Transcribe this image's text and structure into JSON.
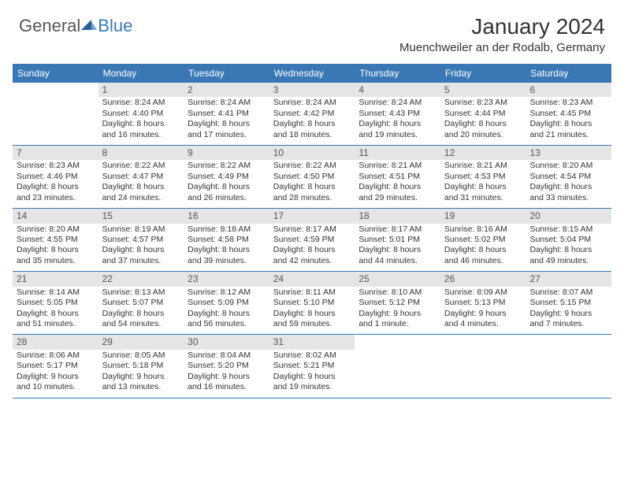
{
  "logo": {
    "part1": "General",
    "part2": "Blue"
  },
  "title": "January 2024",
  "location": "Muenchweiler an der Rodalb, Germany",
  "weekdays": [
    "Sunday",
    "Monday",
    "Tuesday",
    "Wednesday",
    "Thursday",
    "Friday",
    "Saturday"
  ],
  "colors": {
    "header_bar": "#3a78b5",
    "shade": "#e5e5e5",
    "text": "#333333",
    "logo_blue": "#3a78b5"
  },
  "weeks": [
    [
      {
        "day": "",
        "lines": []
      },
      {
        "day": "1",
        "shade": true,
        "lines": [
          "Sunrise: 8:24 AM",
          "Sunset: 4:40 PM",
          "Daylight: 8 hours",
          "and 16 minutes."
        ]
      },
      {
        "day": "2",
        "shade": true,
        "lines": [
          "Sunrise: 8:24 AM",
          "Sunset: 4:41 PM",
          "Daylight: 8 hours",
          "and 17 minutes."
        ]
      },
      {
        "day": "3",
        "shade": true,
        "lines": [
          "Sunrise: 8:24 AM",
          "Sunset: 4:42 PM",
          "Daylight: 8 hours",
          "and 18 minutes."
        ]
      },
      {
        "day": "4",
        "shade": true,
        "lines": [
          "Sunrise: 8:24 AM",
          "Sunset: 4:43 PM",
          "Daylight: 8 hours",
          "and 19 minutes."
        ]
      },
      {
        "day": "5",
        "shade": true,
        "lines": [
          "Sunrise: 8:23 AM",
          "Sunset: 4:44 PM",
          "Daylight: 8 hours",
          "and 20 minutes."
        ]
      },
      {
        "day": "6",
        "shade": true,
        "lines": [
          "Sunrise: 8:23 AM",
          "Sunset: 4:45 PM",
          "Daylight: 8 hours",
          "and 21 minutes."
        ]
      }
    ],
    [
      {
        "day": "7",
        "shade": true,
        "lines": [
          "Sunrise: 8:23 AM",
          "Sunset: 4:46 PM",
          "Daylight: 8 hours",
          "and 23 minutes."
        ]
      },
      {
        "day": "8",
        "shade": true,
        "lines": [
          "Sunrise: 8:22 AM",
          "Sunset: 4:47 PM",
          "Daylight: 8 hours",
          "and 24 minutes."
        ]
      },
      {
        "day": "9",
        "shade": true,
        "lines": [
          "Sunrise: 8:22 AM",
          "Sunset: 4:49 PM",
          "Daylight: 8 hours",
          "and 26 minutes."
        ]
      },
      {
        "day": "10",
        "shade": true,
        "lines": [
          "Sunrise: 8:22 AM",
          "Sunset: 4:50 PM",
          "Daylight: 8 hours",
          "and 28 minutes."
        ]
      },
      {
        "day": "11",
        "shade": true,
        "lines": [
          "Sunrise: 8:21 AM",
          "Sunset: 4:51 PM",
          "Daylight: 8 hours",
          "and 29 minutes."
        ]
      },
      {
        "day": "12",
        "shade": true,
        "lines": [
          "Sunrise: 8:21 AM",
          "Sunset: 4:53 PM",
          "Daylight: 8 hours",
          "and 31 minutes."
        ]
      },
      {
        "day": "13",
        "shade": true,
        "lines": [
          "Sunrise: 8:20 AM",
          "Sunset: 4:54 PM",
          "Daylight: 8 hours",
          "and 33 minutes."
        ]
      }
    ],
    [
      {
        "day": "14",
        "shade": true,
        "lines": [
          "Sunrise: 8:20 AM",
          "Sunset: 4:55 PM",
          "Daylight: 8 hours",
          "and 35 minutes."
        ]
      },
      {
        "day": "15",
        "shade": true,
        "lines": [
          "Sunrise: 8:19 AM",
          "Sunset: 4:57 PM",
          "Daylight: 8 hours",
          "and 37 minutes."
        ]
      },
      {
        "day": "16",
        "shade": true,
        "lines": [
          "Sunrise: 8:18 AM",
          "Sunset: 4:58 PM",
          "Daylight: 8 hours",
          "and 39 minutes."
        ]
      },
      {
        "day": "17",
        "shade": true,
        "lines": [
          "Sunrise: 8:17 AM",
          "Sunset: 4:59 PM",
          "Daylight: 8 hours",
          "and 42 minutes."
        ]
      },
      {
        "day": "18",
        "shade": true,
        "lines": [
          "Sunrise: 8:17 AM",
          "Sunset: 5:01 PM",
          "Daylight: 8 hours",
          "and 44 minutes."
        ]
      },
      {
        "day": "19",
        "shade": true,
        "lines": [
          "Sunrise: 8:16 AM",
          "Sunset: 5:02 PM",
          "Daylight: 8 hours",
          "and 46 minutes."
        ]
      },
      {
        "day": "20",
        "shade": true,
        "lines": [
          "Sunrise: 8:15 AM",
          "Sunset: 5:04 PM",
          "Daylight: 8 hours",
          "and 49 minutes."
        ]
      }
    ],
    [
      {
        "day": "21",
        "shade": true,
        "lines": [
          "Sunrise: 8:14 AM",
          "Sunset: 5:05 PM",
          "Daylight: 8 hours",
          "and 51 minutes."
        ]
      },
      {
        "day": "22",
        "shade": true,
        "lines": [
          "Sunrise: 8:13 AM",
          "Sunset: 5:07 PM",
          "Daylight: 8 hours",
          "and 54 minutes."
        ]
      },
      {
        "day": "23",
        "shade": true,
        "lines": [
          "Sunrise: 8:12 AM",
          "Sunset: 5:09 PM",
          "Daylight: 8 hours",
          "and 56 minutes."
        ]
      },
      {
        "day": "24",
        "shade": true,
        "lines": [
          "Sunrise: 8:11 AM",
          "Sunset: 5:10 PM",
          "Daylight: 8 hours",
          "and 59 minutes."
        ]
      },
      {
        "day": "25",
        "shade": true,
        "lines": [
          "Sunrise: 8:10 AM",
          "Sunset: 5:12 PM",
          "Daylight: 9 hours",
          "and 1 minute."
        ]
      },
      {
        "day": "26",
        "shade": true,
        "lines": [
          "Sunrise: 8:09 AM",
          "Sunset: 5:13 PM",
          "Daylight: 9 hours",
          "and 4 minutes."
        ]
      },
      {
        "day": "27",
        "shade": true,
        "lines": [
          "Sunrise: 8:07 AM",
          "Sunset: 5:15 PM",
          "Daylight: 9 hours",
          "and 7 minutes."
        ]
      }
    ],
    [
      {
        "day": "28",
        "shade": true,
        "lines": [
          "Sunrise: 8:06 AM",
          "Sunset: 5:17 PM",
          "Daylight: 9 hours",
          "and 10 minutes."
        ]
      },
      {
        "day": "29",
        "shade": true,
        "lines": [
          "Sunrise: 8:05 AM",
          "Sunset: 5:18 PM",
          "Daylight: 9 hours",
          "and 13 minutes."
        ]
      },
      {
        "day": "30",
        "shade": true,
        "lines": [
          "Sunrise: 8:04 AM",
          "Sunset: 5:20 PM",
          "Daylight: 9 hours",
          "and 16 minutes."
        ]
      },
      {
        "day": "31",
        "shade": true,
        "lines": [
          "Sunrise: 8:02 AM",
          "Sunset: 5:21 PM",
          "Daylight: 9 hours",
          "and 19 minutes."
        ]
      },
      {
        "day": "",
        "lines": []
      },
      {
        "day": "",
        "lines": []
      },
      {
        "day": "",
        "lines": []
      }
    ]
  ]
}
